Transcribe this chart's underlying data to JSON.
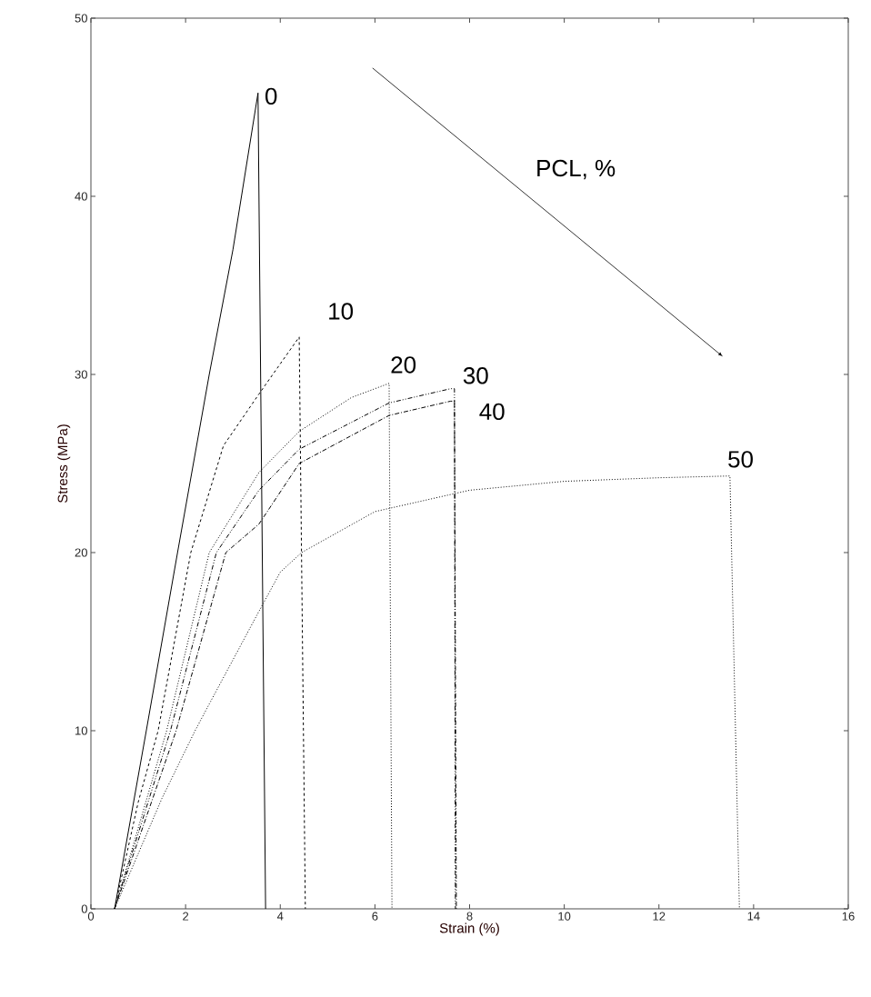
{
  "chart_data": {
    "type": "line",
    "xlabel": "Strain  (%)",
    "ylabel": "Stress  (MPa)",
    "xlim": [
      0,
      16
    ],
    "ylim": [
      0,
      50
    ],
    "xticks": [
      0,
      2,
      4,
      6,
      8,
      10,
      12,
      14,
      16
    ],
    "yticks": [
      0,
      10,
      20,
      30,
      40,
      50
    ],
    "grid": false,
    "annotations": [
      "PCL, %"
    ],
    "series": [
      {
        "name": "0",
        "color": "#000000",
        "line_style": "solid",
        "x": [
          0.5,
          1.17,
          1.83,
          2.5,
          3.0,
          3.53,
          3.69
        ],
        "values": [
          0,
          10,
          20,
          30,
          37,
          45.8,
          0
        ]
      },
      {
        "name": "10",
        "color": "#000000",
        "line_style": "dashed",
        "x": [
          0.5,
          1.0,
          1.42,
          2.11,
          2.8,
          3.55,
          4.4,
          4.53
        ],
        "values": [
          0,
          6,
          10,
          20,
          26,
          28.9,
          32.1,
          0
        ]
      },
      {
        "name": "20",
        "color": "#000000",
        "line_style": "dotted",
        "x": [
          0.5,
          1.6,
          2.5,
          3.55,
          4.4,
          5.5,
          6.3,
          6.36
        ],
        "values": [
          0,
          10,
          20,
          24.5,
          26.8,
          28.7,
          29.5,
          0
        ]
      },
      {
        "name": "30",
        "color": "#000000",
        "line_style": "dashdotdot",
        "x": [
          0.5,
          1.68,
          2.65,
          3.55,
          4.4,
          6.3,
          7.6,
          7.68,
          7.7
        ],
        "values": [
          0,
          10,
          20,
          23.5,
          25.8,
          28.4,
          29.2,
          29.2,
          0
        ]
      },
      {
        "name": "40",
        "color": "#000000",
        "line_style": "dashdot",
        "x": [
          0.5,
          1.8,
          2.85,
          3.55,
          4.4,
          6.3,
          7.6,
          7.68,
          7.72
        ],
        "values": [
          0,
          10,
          20,
          21.6,
          25.0,
          27.7,
          28.5,
          28.5,
          0
        ]
      },
      {
        "name": "50",
        "color": "#000000",
        "line_style": "dotted",
        "x": [
          0.5,
          1.5,
          2.2,
          2.5,
          3.55,
          4.0,
          4.45,
          6.0,
          8.0,
          10.0,
          12.0,
          13.5,
          13.7
        ],
        "values": [
          0,
          6.2,
          10,
          11.5,
          16.7,
          18.9,
          20,
          22.3,
          23.5,
          24.0,
          24.2,
          24.3,
          0
        ]
      }
    ]
  }
}
